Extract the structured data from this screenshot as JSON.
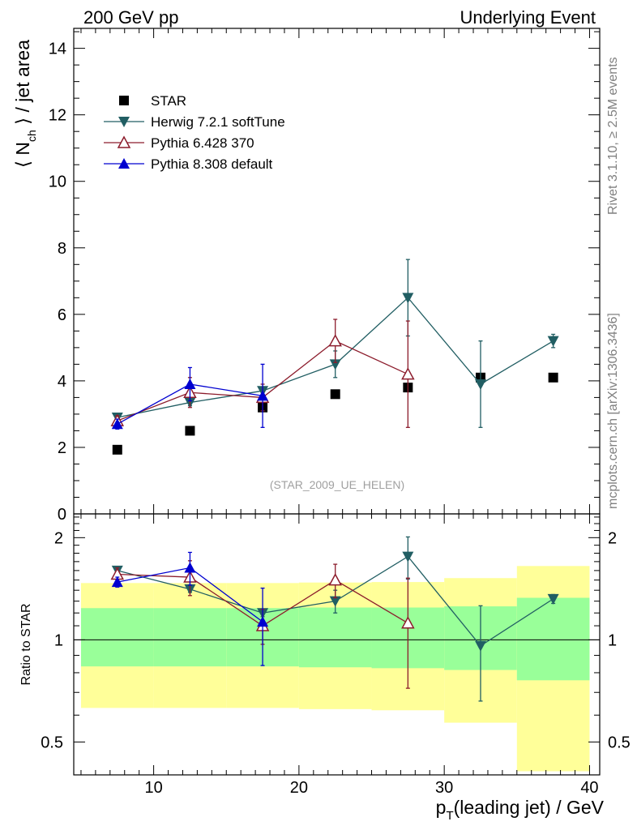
{
  "header": {
    "left": "200 GeV pp",
    "right": "Underlying Event"
  },
  "side_text": {
    "top": "Rivet 3.1.10, ≥ 2.5M events",
    "bottom": "mcplots.cern.ch [arXiv:1306.3436]"
  },
  "analysis_label": "(STAR_2009_UE_HELEN)",
  "chart_data": [
    {
      "type": "scatter",
      "panel": "main",
      "ylabel": "⟨ N_ch ⟩ / jet area",
      "xlim": [
        4.5,
        40.7
      ],
      "ylim": [
        0,
        14.6
      ],
      "yticks": [
        0,
        2,
        4,
        6,
        8,
        10,
        12,
        14
      ],
      "grid": false,
      "legend_placement": "top-left",
      "series": [
        {
          "name": "STAR",
          "color": "#000000",
          "marker": "square",
          "points": [
            {
              "x": 7.5,
              "y": 1.93
            },
            {
              "x": 12.5,
              "y": 2.5
            },
            {
              "x": 17.5,
              "y": 3.2
            },
            {
              "x": 22.5,
              "y": 3.6
            },
            {
              "x": 27.5,
              "y": 3.8
            },
            {
              "x": 32.5,
              "y": 4.1
            },
            {
              "x": 37.5,
              "y": 4.1
            }
          ]
        },
        {
          "name": "Herwig 7.2.1 softTune",
          "color": "#215e63",
          "marker": "triangle-down",
          "points": [
            {
              "x": 7.5,
              "y": 2.9,
              "err": 0.1
            },
            {
              "x": 12.5,
              "y": 3.35,
              "err": 0.1
            },
            {
              "x": 17.5,
              "y": 3.7,
              "err": 0.1
            },
            {
              "x": 22.5,
              "y": 4.5,
              "err": 0.4
            },
            {
              "x": 27.5,
              "y": 6.5,
              "err": 1.15
            },
            {
              "x": 32.5,
              "y": 3.9,
              "err": 1.3
            },
            {
              "x": 37.5,
              "y": 5.2,
              "err": 0.2
            }
          ]
        },
        {
          "name": "Pythia 6.428 370",
          "color": "#8c1c2c",
          "marker": "triangle-up-open",
          "points": [
            {
              "x": 7.5,
              "y": 2.8,
              "err": 0.15
            },
            {
              "x": 12.5,
              "y": 3.65,
              "err": 0.45
            },
            {
              "x": 17.5,
              "y": 3.5,
              "err": 0.4
            },
            {
              "x": 22.5,
              "y": 5.2,
              "err": 0.65
            },
            {
              "x": 27.5,
              "y": 4.2,
              "err": 1.6
            }
          ]
        },
        {
          "name": "Pythia 8.308 default",
          "color": "#0000d0",
          "marker": "triangle-up",
          "points": [
            {
              "x": 7.5,
              "y": 2.7,
              "err": 0.15
            },
            {
              "x": 12.5,
              "y": 3.9,
              "err": 0.5
            },
            {
              "x": 17.5,
              "y": 3.55,
              "err": 0.95
            }
          ]
        }
      ]
    },
    {
      "type": "scatter",
      "panel": "ratio",
      "ylabel": "Ratio to STAR",
      "xlabel": "p_T(leading jet) / GeV",
      "xlim": [
        4.5,
        40.7
      ],
      "ylim": [
        0.4,
        2.35
      ],
      "log_y": true,
      "xticks": [
        10,
        20,
        30,
        40
      ],
      "yticks": [
        0.5,
        1,
        2
      ],
      "reference_line": 1,
      "bands": [
        {
          "x0": 5,
          "x1": 10,
          "inner": [
            0.835,
            1.24
          ],
          "outer": [
            0.63,
            1.47
          ]
        },
        {
          "x0": 10,
          "x1": 15,
          "inner": [
            0.835,
            1.24
          ],
          "outer": [
            0.63,
            1.47
          ]
        },
        {
          "x0": 15,
          "x1": 20,
          "inner": [
            0.835,
            1.24
          ],
          "outer": [
            0.63,
            1.47
          ]
        },
        {
          "x0": 20,
          "x1": 25,
          "inner": [
            0.83,
            1.245
          ],
          "outer": [
            0.625,
            1.475
          ]
        },
        {
          "x0": 25,
          "x1": 30,
          "inner": [
            0.825,
            1.245
          ],
          "outer": [
            0.62,
            1.48
          ]
        },
        {
          "x0": 30,
          "x1": 35,
          "inner": [
            0.815,
            1.255
          ],
          "outer": [
            0.57,
            1.52
          ]
        },
        {
          "x0": 35,
          "x1": 40,
          "inner": [
            0.76,
            1.33
          ],
          "outer": [
            0.41,
            1.65
          ]
        }
      ],
      "series": [
        {
          "name": "Herwig 7.2.1 softTune",
          "color": "#215e63",
          "marker": "triangle-down",
          "points": [
            {
              "x": 7.5,
              "y": 1.6,
              "err": 0.03
            },
            {
              "x": 12.5,
              "y": 1.41,
              "err": 0.03
            },
            {
              "x": 17.5,
              "y": 1.2,
              "err": 0.03
            },
            {
              "x": 22.5,
              "y": 1.3,
              "err": 0.1
            },
            {
              "x": 27.5,
              "y": 1.76,
              "err": 0.25
            },
            {
              "x": 32.5,
              "y": 0.96,
              "err": 0.3
            },
            {
              "x": 37.5,
              "y": 1.32,
              "err": 0.04
            }
          ]
        },
        {
          "name": "Pythia 6.428 370",
          "color": "#8c1c2c",
          "marker": "triangle-up-open",
          "points": [
            {
              "x": 7.5,
              "y": 1.56,
              "err": 0.07
            },
            {
              "x": 12.5,
              "y": 1.53,
              "err": 0.18
            },
            {
              "x": 17.5,
              "y": 1.1,
              "err": 0.13
            },
            {
              "x": 22.5,
              "y": 1.5,
              "err": 0.17
            },
            {
              "x": 27.5,
              "y": 1.12,
              "err": 0.4
            }
          ]
        },
        {
          "name": "Pythia 8.308 default",
          "color": "#0000d0",
          "marker": "triangle-up",
          "points": [
            {
              "x": 7.5,
              "y": 1.48,
              "err": 0.05
            },
            {
              "x": 12.5,
              "y": 1.63,
              "err": 0.18
            },
            {
              "x": 17.5,
              "y": 1.13,
              "err": 0.29
            }
          ]
        }
      ]
    }
  ]
}
